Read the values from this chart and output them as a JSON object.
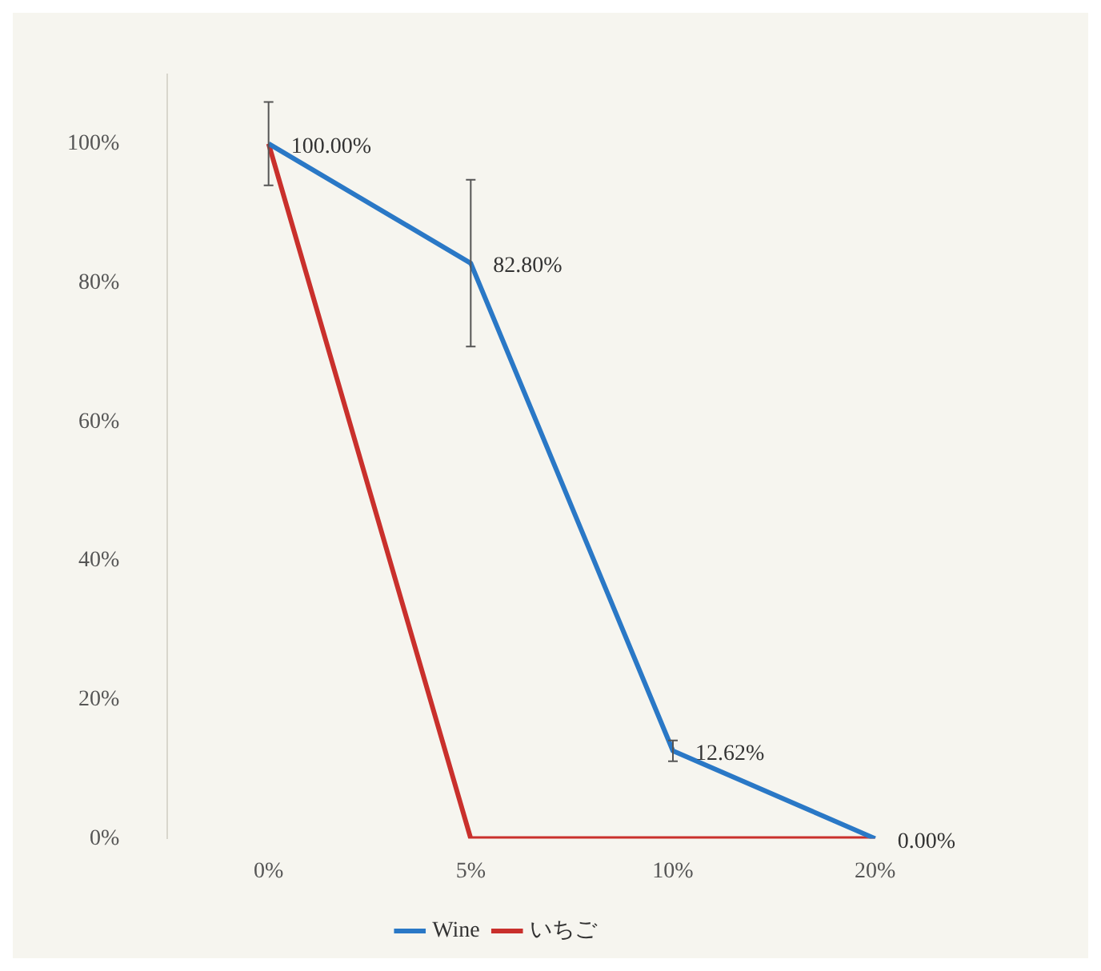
{
  "chart_data": {
    "type": "line",
    "categories": [
      "0%",
      "5%",
      "10%",
      "20%"
    ],
    "series": [
      {
        "name": "Wine",
        "color": "#2a78c6",
        "values": [
          100,
          82.8,
          12.62,
          0
        ],
        "errors": [
          6,
          12,
          1.5,
          null
        ],
        "value_labels": [
          "100.00%",
          "82.80%",
          "12.62%",
          "0.00%"
        ]
      },
      {
        "name": "いちご",
        "color": "#c9302c",
        "values": [
          100,
          0,
          0,
          0
        ]
      }
    ],
    "ylim": [
      0,
      110
    ],
    "yticks": [
      {
        "value": 0,
        "label": "0%"
      },
      {
        "value": 20,
        "label": "20%"
      },
      {
        "value": 40,
        "label": "40%"
      },
      {
        "value": 60,
        "label": "60%"
      },
      {
        "value": 80,
        "label": "80%"
      },
      {
        "value": 100,
        "label": "100%"
      }
    ],
    "grid": false,
    "legend": "bottom",
    "marker": "none",
    "line_style": "solid"
  }
}
